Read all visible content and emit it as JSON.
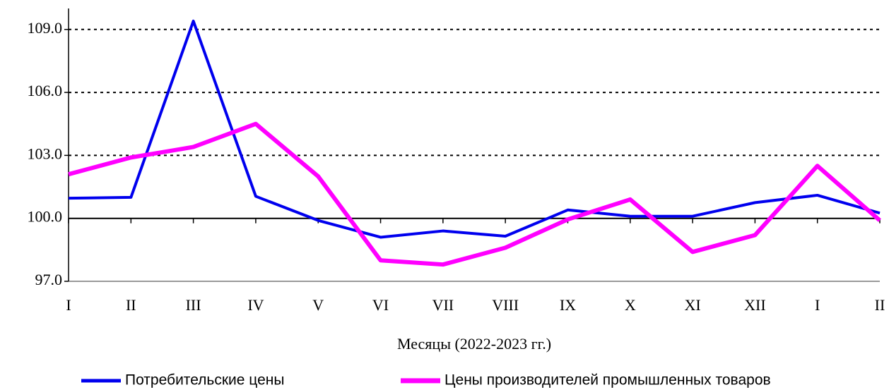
{
  "chart_data": {
    "type": "line",
    "x_label": "Месяцы (2022-2023 гг.)",
    "categories": [
      "I",
      "II",
      "III",
      "IV",
      "V",
      "VI",
      "VII",
      "VIII",
      "IX",
      "X",
      "XI",
      "XII",
      "I",
      "II"
    ],
    "series": [
      {
        "name": "Потребительские цены",
        "color": "#0000ee",
        "values": [
          100.96,
          101.0,
          109.4,
          101.05,
          99.9,
          99.1,
          99.4,
          99.15,
          100.4,
          100.1,
          100.1,
          100.75,
          101.1,
          100.25
        ]
      },
      {
        "name": "Цены производителей промышленных товаров",
        "color": "#ff00ff",
        "values": [
          102.1,
          102.9,
          103.4,
          104.5,
          102.0,
          98.0,
          97.8,
          98.6,
          99.95,
          100.9,
          98.4,
          99.2,
          102.5,
          99.9
        ]
      }
    ],
    "ylim": [
      97,
      110
    ],
    "yticks": [
      {
        "value": 97,
        "label": "97.0"
      },
      {
        "value": 100,
        "label": "100.0"
      },
      {
        "value": 103,
        "label": "103.0"
      },
      {
        "value": 106,
        "label": "106.0"
      },
      {
        "value": 109,
        "label": "109.0"
      }
    ],
    "x_axis_crosses": 100,
    "grid": true
  }
}
